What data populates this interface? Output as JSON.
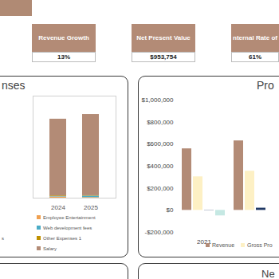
{
  "kpis": [
    {
      "title": "Revenue Growth",
      "value": "13%"
    },
    {
      "title": "Net Present Value",
      "value": "$953,754"
    },
    {
      "title": "nternal Rate of",
      "value": "61%"
    }
  ],
  "chart_data": [
    {
      "type": "bar",
      "title": "nses",
      "categories": [
        "2024",
        "2025"
      ],
      "stacked": true,
      "series": [
        {
          "name": "Employee Entertainment",
          "color": "#f0a050",
          "values": [
            6000,
            3000
          ]
        },
        {
          "name": "Web development fees",
          "color": "#4bacc6",
          "values": [
            2000,
            7000
          ]
        },
        {
          "name": "Other Expenses 1",
          "color": "#bf9000",
          "values": [
            3000,
            2000
          ]
        },
        {
          "name": "Salary",
          "color": "#b38b76",
          "values": [
            376000,
            398000
          ]
        },
        {
          "name": "s",
          "values": [
            null,
            null
          ]
        }
      ],
      "ylim": [
        0,
        500000
      ],
      "tick_labels": "x",
      "legend": "bottom"
    },
    {
      "type": "bar",
      "title": "Pro",
      "categories": [
        "2021",
        null
      ],
      "series": [
        {
          "name": "Revenue",
          "color": "#b38b76",
          "values": [
            558000,
            630000
          ]
        },
        {
          "name": "Gross Pro",
          "color": "#fdf0c4",
          "values": [
            304000,
            355000
          ]
        },
        {
          "name": null,
          "color": "#1f3864",
          "values": [
            2000,
            20000
          ]
        },
        {
          "name": null,
          "color": "#c5e8e3",
          "values": [
            -50000,
            null
          ]
        }
      ],
      "ylim": [
        -200000,
        1000000
      ],
      "yticks": [
        {
          "value": -200000,
          "label": "-$200,000"
        },
        {
          "value": 0,
          "label": "$0"
        },
        {
          "value": 200000,
          "label": "$200,000"
        },
        {
          "value": 400000,
          "label": "$400,000"
        },
        {
          "value": 600000,
          "label": "$600,000"
        },
        {
          "value": 800000,
          "label": "$800,000"
        },
        {
          "value": 1000000,
          "label": "$1,000,000"
        }
      ],
      "legend": "bottom"
    }
  ],
  "panels": [
    "Ne"
  ]
}
